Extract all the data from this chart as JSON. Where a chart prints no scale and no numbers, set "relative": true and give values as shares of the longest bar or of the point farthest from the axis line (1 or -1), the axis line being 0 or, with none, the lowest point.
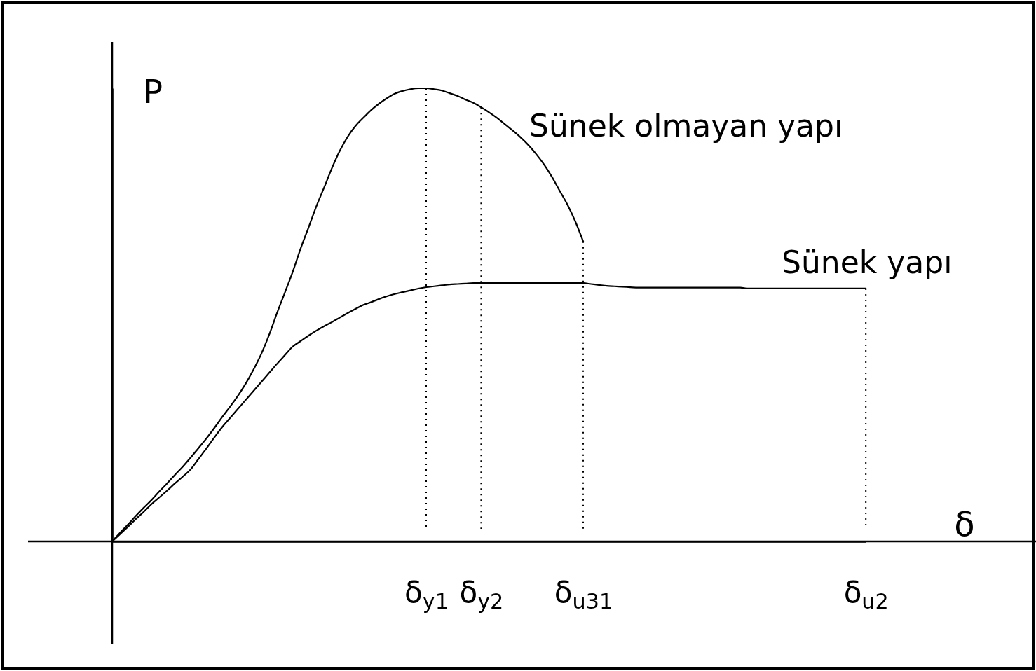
{
  "chart_data": {
    "type": "line",
    "relative": true,
    "xlabel": "δ",
    "ylabel": "P",
    "marker": "none",
    "line_style": "solid",
    "categories": [
      null,
      null,
      null,
      null,
      null,
      null,
      null,
      null,
      null,
      null,
      null,
      null,
      null,
      null,
      null,
      null,
      null,
      null,
      null,
      null,
      null,
      null,
      null,
      null,
      null,
      null,
      null,
      null,
      null,
      null,
      null,
      null,
      null,
      null,
      null,
      null,
      null,
      null,
      null,
      null,
      "δ$_{y1}$",
      null,
      null,
      null,
      null,
      null,
      null,
      "δ$_{y2}$",
      null,
      null,
      null,
      null,
      null,
      null,
      null,
      null,
      null,
      null,
      null,
      null,
      "δ$_{u31}$",
      null,
      null,
      null,
      null,
      null,
      null,
      null,
      null,
      null,
      null,
      null,
      null,
      null,
      null,
      null,
      null,
      null,
      null,
      null,
      null,
      null,
      null,
      null,
      null,
      null,
      null,
      null,
      null,
      null,
      null,
      null,
      null,
      null,
      null,
      null,
      "δ$_{u2}$"
    ],
    "series": [
      {
        "name": "Sünek olmayan yapı",
        "color": "#000000",
        "values": [
          0,
          0.019,
          0.037,
          0.056,
          0.074,
          0.091,
          0.11,
          0.128,
          0.147,
          0.165,
          0.185,
          0.206,
          0.227,
          0.25,
          0.274,
          0.297,
          0.321,
          0.348,
          0.379,
          0.414,
          0.456,
          0.504,
          0.549,
          0.595,
          0.646,
          0.692,
          0.739,
          0.781,
          0.824,
          0.862,
          0.893,
          0.917,
          0.935,
          0.952,
          0.966,
          0.978,
          0.988,
          0.994,
          0.998,
          1,
          1,
          0.998,
          0.995,
          0.989,
          0.983,
          0.975,
          0.968,
          0.958,
          0.947,
          0.935,
          0.921,
          0.907,
          0.892,
          0.875,
          0.855,
          0.832,
          0.805,
          0.774,
          0.743,
          0.706,
          0.662,
          null,
          null,
          null,
          null,
          null,
          null,
          null,
          null,
          null,
          null,
          null,
          null,
          null,
          null,
          null,
          null,
          null,
          null,
          null,
          null,
          null,
          null,
          null,
          null,
          null,
          null,
          null,
          null,
          null,
          null,
          null,
          null,
          null,
          null,
          null,
          null
        ]
      },
      {
        "name": "Sünek yapı",
        "color": "#000000",
        "values": [
          0,
          0.016,
          0.032,
          0.049,
          0.065,
          0.082,
          0.097,
          0.112,
          0.128,
          0.143,
          0.159,
          0.182,
          0.205,
          0.229,
          0.252,
          0.272,
          0.292,
          0.312,
          0.332,
          0.352,
          0.372,
          0.392,
          0.411,
          0.43,
          0.442,
          0.454,
          0.465,
          0.475,
          0.484,
          0.494,
          0.504,
          0.513,
          0.522,
          0.528,
          0.535,
          0.541,
          0.546,
          0.55,
          0.554,
          0.558,
          0.561,
          0.563,
          0.565,
          0.567,
          0.568,
          0.569,
          0.57,
          0.57,
          0.57,
          0.57,
          0.57,
          0.57,
          0.57,
          0.57,
          0.57,
          0.57,
          0.57,
          0.57,
          0.57,
          0.57,
          0.57,
          0.568,
          0.566,
          0.564,
          0.563,
          0.562,
          0.561,
          0.56,
          0.56,
          0.56,
          0.56,
          0.56,
          0.56,
          0.56,
          0.56,
          0.56,
          0.56,
          0.56,
          0.56,
          0.56,
          0.56,
          0.558,
          0.558,
          0.558,
          0.558,
          0.558,
          0.558,
          0.558,
          0.558,
          0.558,
          0.558,
          0.558,
          0.558,
          0.558,
          0.558,
          0.558,
          0.558
        ]
      }
    ]
  }
}
